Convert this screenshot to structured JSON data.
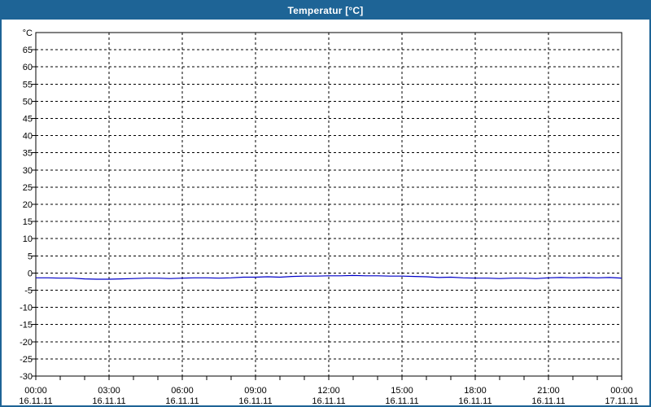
{
  "window": {
    "title": "Temperatur [°C]",
    "titlebar_color": "#1e6496",
    "border_color": "#1e6496",
    "background_color": "#ffffff"
  },
  "chart_data": {
    "type": "line",
    "title": "Temperatur [°C]",
    "unit": "°C",
    "grid": "dashed-black",
    "legend": "none",
    "plot_background": "#ffffff",
    "y_axis": {
      "min": -30,
      "max": 70,
      "tick_step": 5,
      "unit_label": "°C",
      "ticks": [
        {
          "v": 70,
          "label": "°C"
        },
        {
          "v": 65,
          "label": "65"
        },
        {
          "v": 60,
          "label": "60"
        },
        {
          "v": 55,
          "label": "55"
        },
        {
          "v": 50,
          "label": "50"
        },
        {
          "v": 45,
          "label": "45"
        },
        {
          "v": 40,
          "label": "40"
        },
        {
          "v": 35,
          "label": "35"
        },
        {
          "v": 30,
          "label": "30"
        },
        {
          "v": 25,
          "label": "25"
        },
        {
          "v": 20,
          "label": "20"
        },
        {
          "v": 15,
          "label": "15"
        },
        {
          "v": 10,
          "label": "10"
        },
        {
          "v": 5,
          "label": "5"
        },
        {
          "v": 0,
          "label": "0"
        },
        {
          "v": -5,
          "label": "-5"
        },
        {
          "v": -10,
          "label": "-10"
        },
        {
          "v": -15,
          "label": "-15"
        },
        {
          "v": -20,
          "label": "-20"
        },
        {
          "v": -25,
          "label": "-25"
        },
        {
          "v": -30,
          "label": "-30"
        }
      ]
    },
    "x_axis": {
      "range_hours": [
        0,
        24
      ],
      "minor_tick_hours": 1,
      "grid_hours": [
        3,
        6,
        9,
        12,
        15,
        18,
        21
      ],
      "labels": [
        {
          "h": 0,
          "time": "00:00",
          "date": "16.11.11"
        },
        {
          "h": 3,
          "time": "03:00",
          "date": "16.11.11"
        },
        {
          "h": 6,
          "time": "06:00",
          "date": "16.11.11"
        },
        {
          "h": 9,
          "time": "09:00",
          "date": "16.11.11"
        },
        {
          "h": 12,
          "time": "12:00",
          "date": "16.11.11"
        },
        {
          "h": 15,
          "time": "15:00",
          "date": "16.11.11"
        },
        {
          "h": 18,
          "time": "18:00",
          "date": "16.11.11"
        },
        {
          "h": 21,
          "time": "21:00",
          "date": "16.11.11"
        },
        {
          "h": 24,
          "time": "00:00",
          "date": "17.11.11"
        }
      ]
    },
    "series": [
      {
        "name": "Temperatur",
        "color": "#0000c8",
        "x_hours": [
          0,
          0.5,
          1,
          1.5,
          2,
          2.5,
          3,
          3.5,
          4,
          4.5,
          5,
          5.5,
          6,
          6.5,
          7,
          7.5,
          8,
          8.5,
          9,
          9.5,
          10,
          10.5,
          11,
          11.5,
          12,
          12.5,
          13,
          13.5,
          14,
          14.5,
          15,
          15.5,
          16,
          16.5,
          17,
          17.5,
          18,
          18.5,
          19,
          19.5,
          20,
          20.5,
          21,
          21.5,
          22,
          22.5,
          23,
          23.5,
          24
        ],
        "values": [
          -1.4,
          -1.4,
          -1.5,
          -1.5,
          -1.7,
          -1.8,
          -1.8,
          -1.7,
          -1.6,
          -1.5,
          -1.5,
          -1.6,
          -1.5,
          -1.4,
          -1.4,
          -1.5,
          -1.4,
          -1.2,
          -1.2,
          -1.1,
          -1.2,
          -1.0,
          -0.9,
          -0.9,
          -0.8,
          -0.8,
          -0.7,
          -0.8,
          -0.8,
          -0.9,
          -0.9,
          -1.0,
          -1.1,
          -1.3,
          -1.2,
          -1.4,
          -1.5,
          -1.5,
          -1.6,
          -1.5,
          -1.5,
          -1.6,
          -1.4,
          -1.3,
          -1.4,
          -1.3,
          -1.4,
          -1.3,
          -1.5
        ]
      }
    ]
  }
}
